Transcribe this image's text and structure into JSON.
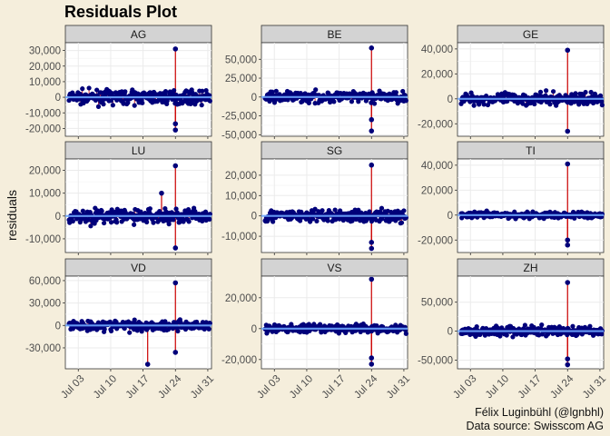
{
  "chart_data": {
    "type": "scatter",
    "title": "Residuals Plot",
    "ylabel": "residuals",
    "xlabel": "",
    "caption": [
      "Félix Luginbühl (@lgnbhl)",
      "Data source: Swisscom AG"
    ],
    "x_ticks": [
      "Jul 03",
      "Jul 10",
      "Jul 17",
      "Jul 24",
      "Jul 31"
    ],
    "x_range": [
      "Jul 01",
      "Jul 31"
    ],
    "colors": {
      "point": "#00007a",
      "segment": "#cc0000",
      "smooth": "#6fa8ff",
      "strip": "#d3d3d3",
      "panel": "#ffffff",
      "grid": "#ebebeb"
    },
    "panels": [
      {
        "name": "AG",
        "ylim": [
          -25000,
          35000
        ],
        "ticks": [
          -20000,
          -10000,
          0,
          10000,
          20000,
          30000
        ],
        "tick_labels": [
          "-20,000",
          "-10,000",
          "0",
          "10,000",
          "20,000",
          "30,000"
        ],
        "spread": 7000,
        "outliers": [
          {
            "x": "Jul 24",
            "y": 31000
          },
          {
            "x": "Jul 24",
            "y": -17000
          },
          {
            "x": "Jul 24",
            "y": -21000
          }
        ]
      },
      {
        "name": "BE",
        "ylim": [
          -52000,
          72000
        ],
        "ticks": [
          -50000,
          -25000,
          0,
          25000,
          50000
        ],
        "tick_labels": [
          "-50,000",
          "-25,000",
          "0",
          "25,000",
          "50,000"
        ],
        "spread": 12000,
        "outliers": [
          {
            "x": "Jul 24",
            "y": 65000
          },
          {
            "x": "Jul 24",
            "y": -30000
          },
          {
            "x": "Jul 24",
            "y": -45000
          }
        ]
      },
      {
        "name": "GE",
        "ylim": [
          -30000,
          45000
        ],
        "ticks": [
          -20000,
          0,
          20000,
          40000
        ],
        "tick_labels": [
          "-20,000",
          "0",
          "20,000",
          "40,000"
        ],
        "spread": 8000,
        "outliers": [
          {
            "x": "Jul 24",
            "y": 39000
          },
          {
            "x": "Jul 24",
            "y": -26000
          }
        ]
      },
      {
        "name": "LU",
        "ylim": [
          -16000,
          25000
        ],
        "ticks": [
          -10000,
          0,
          10000,
          20000
        ],
        "tick_labels": [
          "-10,000",
          "0",
          "10,000",
          "20,000"
        ],
        "spread": 5500,
        "outliers": [
          {
            "x": "Jul 24",
            "y": 22000
          },
          {
            "x": "Jul 24",
            "y": -14000
          },
          {
            "x": "Jul 21",
            "y": 10000
          }
        ]
      },
      {
        "name": "SG",
        "ylim": [
          -18000,
          28000
        ],
        "ticks": [
          -10000,
          0,
          10000,
          20000
        ],
        "tick_labels": [
          "-10,000",
          "0",
          "10,000",
          "20,000"
        ],
        "spread": 5000,
        "outliers": [
          {
            "x": "Jul 24",
            "y": 25000
          },
          {
            "x": "Jul 24",
            "y": -13000
          },
          {
            "x": "Jul 24",
            "y": -16000
          }
        ]
      },
      {
        "name": "TI",
        "ylim": [
          -30000,
          45000
        ],
        "ticks": [
          -20000,
          0,
          20000,
          40000
        ],
        "tick_labels": [
          "-20,000",
          "0",
          "20,000",
          "40,000"
        ],
        "spread": 4500,
        "outliers": [
          {
            "x": "Jul 24",
            "y": 41000
          },
          {
            "x": "Jul 24",
            "y": -20000
          },
          {
            "x": "Jul 24",
            "y": -24000
          }
        ]
      },
      {
        "name": "VD",
        "ylim": [
          -58000,
          66000
        ],
        "ticks": [
          -30000,
          0,
          30000,
          60000
        ],
        "tick_labels": [
          "-30,000",
          "0",
          "30,000",
          "60,000"
        ],
        "spread": 12000,
        "outliers": [
          {
            "x": "Jul 24",
            "y": 57000
          },
          {
            "x": "Jul 24",
            "y": -36000
          },
          {
            "x": "Jul 18",
            "y": -52000
          }
        ]
      },
      {
        "name": "VS",
        "ylim": [
          -26000,
          34000
        ],
        "ticks": [
          -20000,
          0,
          20000
        ],
        "tick_labels": [
          "-20,000",
          "0",
          "20,000"
        ],
        "spread": 4500,
        "outliers": [
          {
            "x": "Jul 24",
            "y": 32000
          },
          {
            "x": "Jul 24",
            "y": -19000
          },
          {
            "x": "Jul 24",
            "y": -23000
          }
        ]
      },
      {
        "name": "ZH",
        "ylim": [
          -65000,
          95000
        ],
        "ticks": [
          -50000,
          0,
          50000
        ],
        "tick_labels": [
          "-50,000",
          "0",
          "50,000"
        ],
        "spread": 15000,
        "outliers": [
          {
            "x": "Jul 24",
            "y": 84000
          },
          {
            "x": "Jul 24",
            "y": -48000
          },
          {
            "x": "Jul 24",
            "y": -58000
          }
        ]
      }
    ]
  }
}
